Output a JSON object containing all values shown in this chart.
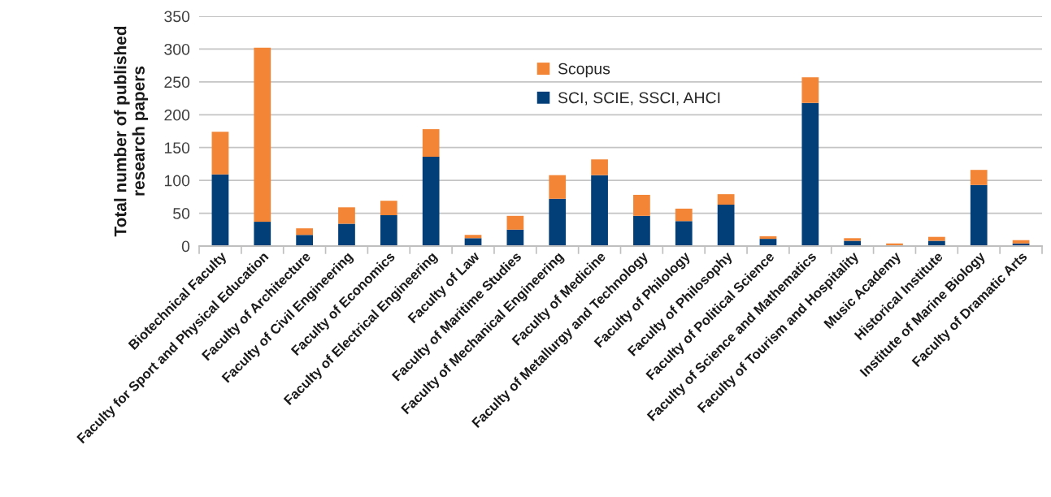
{
  "chart_data": {
    "type": "bar",
    "stacked": true,
    "ylabel": "Total number of published\nresearch papers",
    "categories": [
      "Biotechnical Faculty",
      "Faculty for Sport and Physical Education",
      "Faculty of Architecture",
      "Faculty of Civil Engineering",
      "Faculty of Economics",
      "Faculty of Electrical Engineering",
      "Faculty of Law",
      "Faculty of Maritime Studies",
      "Faculty of Mechanical Engineering",
      "Faculty of Medicine",
      "Faculty of Metallurgy and Technology",
      "Faculty of Philology",
      "Faculty of Philosophy",
      "Faculty of Political Science",
      "Faculty of Science and Mathematics",
      "Faculty of Tourism and Hospitality",
      "Music Academy",
      "Historical Institute",
      "Institute of Marine Biology",
      "Faculty of Dramatic Arts"
    ],
    "series": [
      {
        "name": "SCI, SCIE, SSCI, AHCI",
        "color": "#023f78",
        "values": [
          109,
          37,
          17,
          34,
          47,
          136,
          12,
          25,
          72,
          108,
          46,
          38,
          63,
          11,
          218,
          8,
          0,
          8,
          93,
          4
        ]
      },
      {
        "name": "Scopus",
        "color": "#f28536",
        "values": [
          65,
          265,
          10,
          25,
          22,
          42,
          5,
          21,
          36,
          24,
          32,
          19,
          16,
          4,
          39,
          4,
          4,
          6,
          23,
          5
        ]
      }
    ],
    "ylim": [
      0,
      350
    ],
    "yticks": [
      0,
      50,
      100,
      150,
      200,
      250,
      300,
      350
    ],
    "grid": "y",
    "legend": "top"
  }
}
